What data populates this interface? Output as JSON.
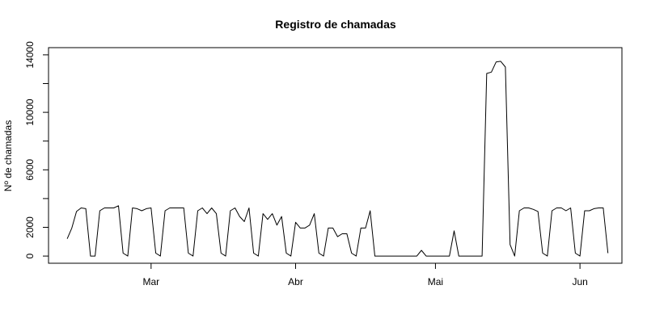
{
  "chart_data": {
    "type": "line",
    "title": "Registro de chamadas",
    "xlabel": "",
    "ylabel": "Nº de chamadas",
    "grid": false,
    "ylim": [
      -500,
      14500
    ],
    "xlim": [
      "2019-02-07",
      "2019-06-10"
    ],
    "y_ticks": [
      0,
      2000,
      6000,
      10000,
      14000
    ],
    "x_ticks": [
      {
        "date": "2019-03-01",
        "label": "Mar"
      },
      {
        "date": "2019-04-01",
        "label": "Abr"
      },
      {
        "date": "2019-05-01",
        "label": "Mai"
      },
      {
        "date": "2019-06-01",
        "label": "Jun"
      }
    ],
    "series": [
      {
        "color": "#000000",
        "points": [
          [
            "2019-02-11",
            1200
          ],
          [
            "2019-02-12",
            1950
          ],
          [
            "2019-02-13",
            3100
          ],
          [
            "2019-02-14",
            3350
          ],
          [
            "2019-02-15",
            3300
          ],
          [
            "2019-02-16",
            0
          ],
          [
            "2019-02-17",
            0
          ],
          [
            "2019-02-18",
            3150
          ],
          [
            "2019-02-19",
            3350
          ],
          [
            "2019-02-20",
            3350
          ],
          [
            "2019-02-21",
            3350
          ],
          [
            "2019-02-22",
            3500
          ],
          [
            "2019-02-23",
            200
          ],
          [
            "2019-02-24",
            0
          ],
          [
            "2019-02-25",
            3350
          ],
          [
            "2019-02-26",
            3300
          ],
          [
            "2019-02-27",
            3150
          ],
          [
            "2019-02-28",
            3300
          ],
          [
            "2019-03-01",
            3350
          ],
          [
            "2019-03-02",
            200
          ],
          [
            "2019-03-03",
            0
          ],
          [
            "2019-03-04",
            3150
          ],
          [
            "2019-03-05",
            3350
          ],
          [
            "2019-03-06",
            3350
          ],
          [
            "2019-03-07",
            3350
          ],
          [
            "2019-03-08",
            3350
          ],
          [
            "2019-03-09",
            200
          ],
          [
            "2019-03-10",
            0
          ],
          [
            "2019-03-11",
            3150
          ],
          [
            "2019-03-12",
            3350
          ],
          [
            "2019-03-13",
            2950
          ],
          [
            "2019-03-14",
            3350
          ],
          [
            "2019-03-15",
            2950
          ],
          [
            "2019-03-16",
            200
          ],
          [
            "2019-03-17",
            0
          ],
          [
            "2019-03-18",
            3150
          ],
          [
            "2019-03-19",
            3350
          ],
          [
            "2019-03-20",
            2750
          ],
          [
            "2019-03-21",
            2400
          ],
          [
            "2019-03-22",
            3350
          ],
          [
            "2019-03-23",
            200
          ],
          [
            "2019-03-24",
            0
          ],
          [
            "2019-03-25",
            2950
          ],
          [
            "2019-03-26",
            2550
          ],
          [
            "2019-03-27",
            2950
          ],
          [
            "2019-03-28",
            2150
          ],
          [
            "2019-03-29",
            2750
          ],
          [
            "2019-03-30",
            200
          ],
          [
            "2019-03-31",
            0
          ],
          [
            "2019-04-01",
            2350
          ],
          [
            "2019-04-02",
            1950
          ],
          [
            "2019-04-03",
            1950
          ],
          [
            "2019-04-04",
            2150
          ],
          [
            "2019-04-05",
            2950
          ],
          [
            "2019-04-06",
            200
          ],
          [
            "2019-04-07",
            0
          ],
          [
            "2019-04-08",
            1950
          ],
          [
            "2019-04-09",
            1950
          ],
          [
            "2019-04-10",
            1350
          ],
          [
            "2019-04-11",
            1550
          ],
          [
            "2019-04-12",
            1550
          ],
          [
            "2019-04-13",
            200
          ],
          [
            "2019-04-14",
            0
          ],
          [
            "2019-04-15",
            1950
          ],
          [
            "2019-04-16",
            1950
          ],
          [
            "2019-04-17",
            3150
          ],
          [
            "2019-04-18",
            0
          ],
          [
            "2019-04-26",
            0
          ],
          [
            "2019-04-27",
            0
          ],
          [
            "2019-04-28",
            400
          ],
          [
            "2019-04-29",
            0
          ],
          [
            "2019-05-04",
            0
          ],
          [
            "2019-05-05",
            1750
          ],
          [
            "2019-05-06",
            0
          ],
          [
            "2019-05-11",
            0
          ],
          [
            "2019-05-12",
            12700
          ],
          [
            "2019-05-13",
            12800
          ],
          [
            "2019-05-14",
            13500
          ],
          [
            "2019-05-15",
            13550
          ],
          [
            "2019-05-16",
            13150
          ],
          [
            "2019-05-17",
            800
          ],
          [
            "2019-05-18",
            0
          ],
          [
            "2019-05-19",
            3150
          ],
          [
            "2019-05-20",
            3350
          ],
          [
            "2019-05-21",
            3350
          ],
          [
            "2019-05-22",
            3250
          ],
          [
            "2019-05-23",
            3100
          ],
          [
            "2019-05-24",
            200
          ],
          [
            "2019-05-25",
            0
          ],
          [
            "2019-05-26",
            3150
          ],
          [
            "2019-05-27",
            3350
          ],
          [
            "2019-05-28",
            3350
          ],
          [
            "2019-05-29",
            3150
          ],
          [
            "2019-05-30",
            3350
          ],
          [
            "2019-05-31",
            200
          ],
          [
            "2019-06-01",
            0
          ],
          [
            "2019-06-02",
            3150
          ],
          [
            "2019-06-03",
            3150
          ],
          [
            "2019-06-04",
            3300
          ],
          [
            "2019-06-05",
            3350
          ],
          [
            "2019-06-06",
            3350
          ],
          [
            "2019-06-07",
            200
          ]
        ]
      }
    ]
  }
}
